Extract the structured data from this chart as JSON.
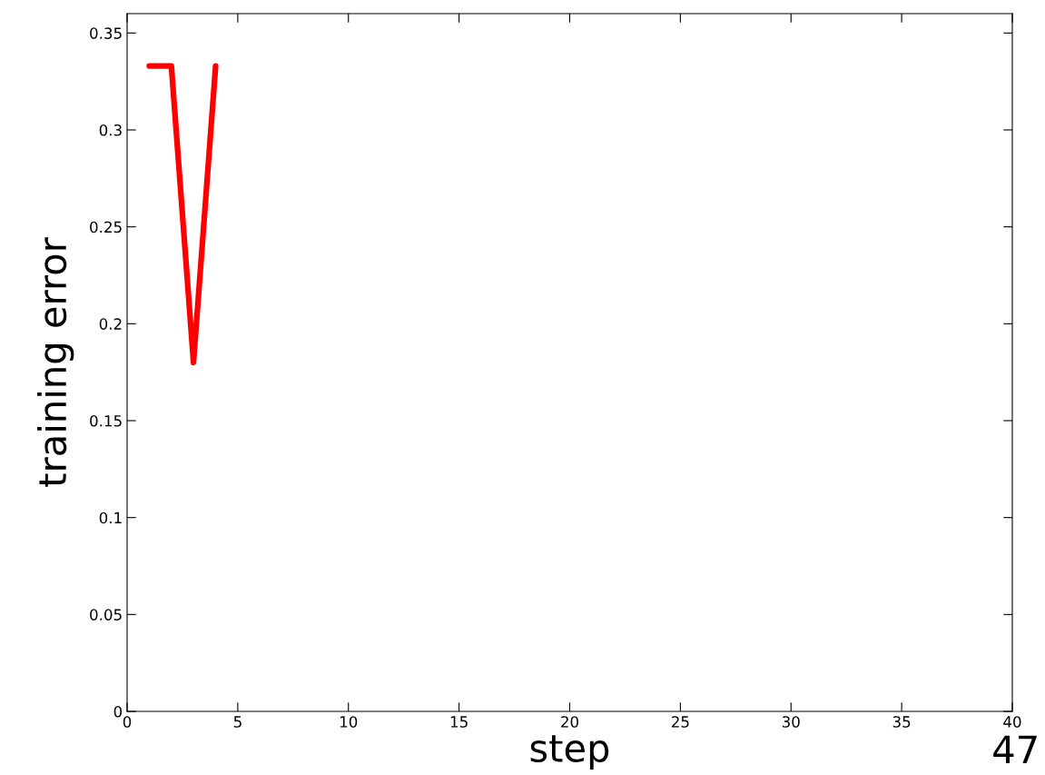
{
  "chart_data": {
    "type": "line",
    "xlabel": "step",
    "ylabel": "training error",
    "x": [
      1,
      2,
      3,
      4
    ],
    "series": [
      {
        "color": "#ff0000",
        "values": [
          0.333,
          0.333,
          0.18,
          0.333
        ]
      }
    ],
    "xlim": [
      0,
      40
    ],
    "xticks": [
      0,
      5,
      10,
      15,
      20,
      25,
      30,
      35,
      40
    ],
    "ylim": [
      0,
      0.36
    ],
    "yticks": [
      0,
      0.05,
      0.1,
      0.15,
      0.2,
      0.25,
      0.3,
      0.35
    ],
    "grid": false,
    "legend": false,
    "marker": "none",
    "line_style": "solid",
    "annotations": [
      "47"
    ]
  }
}
